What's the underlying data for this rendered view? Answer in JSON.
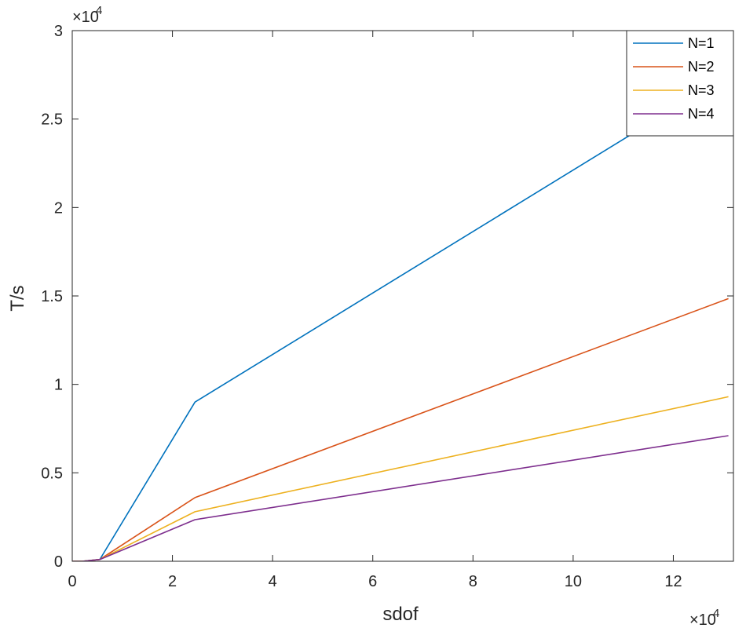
{
  "chart_data": {
    "type": "line",
    "xlabel": "sdof",
    "ylabel": "T/s",
    "x_exponent_label": "×10",
    "x_exponent_power": "4",
    "y_exponent_label": "×10",
    "y_exponent_power": "4",
    "xlim": [
      0,
      13.2
    ],
    "ylim": [
      0,
      3
    ],
    "x_ticks": [
      0,
      2,
      4,
      6,
      8,
      10,
      12
    ],
    "x_tick_labels": [
      "0",
      "2",
      "4",
      "6",
      "8",
      "10",
      "12"
    ],
    "y_ticks": [
      0,
      0.5,
      1,
      1.5,
      2,
      2.5,
      3
    ],
    "y_tick_labels": [
      "0",
      "0.5",
      "1",
      "1.5",
      "2",
      "2.5",
      "3"
    ],
    "grid": false,
    "legend_position": "top-right",
    "x": [
      0,
      0.2,
      0.55,
      2.45,
      13.1
    ],
    "series": [
      {
        "name": "N=1",
        "color": "#0072BD",
        "values": [
          0,
          0,
          0.01,
          0.9,
          2.75
        ]
      },
      {
        "name": "N=2",
        "color": "#D95319",
        "values": [
          0,
          0,
          0.01,
          0.36,
          1.485
        ]
      },
      {
        "name": "N=3",
        "color": "#EDB120",
        "values": [
          0,
          0,
          0.01,
          0.28,
          0.93
        ]
      },
      {
        "name": "N=4",
        "color": "#7E2F8E",
        "values": [
          0,
          0,
          0.01,
          0.235,
          0.71
        ]
      }
    ]
  }
}
